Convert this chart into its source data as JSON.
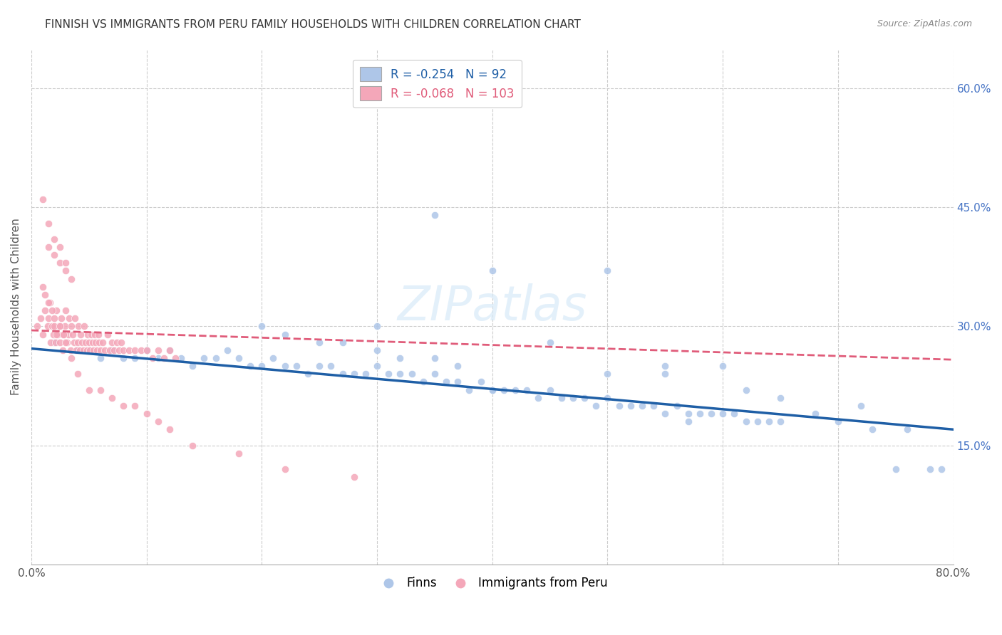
{
  "title": "FINNISH VS IMMIGRANTS FROM PERU FAMILY HOUSEHOLDS WITH CHILDREN CORRELATION CHART",
  "source": "Source: ZipAtlas.com",
  "ylabel": "Family Households with Children",
  "xlim": [
    0.0,
    0.8
  ],
  "ylim": [
    0.0,
    0.65
  ],
  "xticks": [
    0.0,
    0.1,
    0.2,
    0.3,
    0.4,
    0.5,
    0.6,
    0.7,
    0.8
  ],
  "xticklabels": [
    "0.0%",
    "",
    "",
    "",
    "",
    "",
    "",
    "",
    "80.0%"
  ],
  "yticks_right": [
    0.15,
    0.3,
    0.45,
    0.6
  ],
  "ytick_labels_right": [
    "15.0%",
    "30.0%",
    "45.0%",
    "60.0%"
  ],
  "legend_r_blue": "-0.254",
  "legend_n_blue": "92",
  "legend_r_pink": "-0.068",
  "legend_n_pink": "103",
  "blue_color": "#aec6e8",
  "pink_color": "#f4a7b9",
  "trendline_blue_color": "#1f5fa6",
  "trendline_pink_color": "#e05c7a",
  "watermark": "ZIPatlas",
  "trendline_blue_x0": 0.0,
  "trendline_blue_y0": 0.272,
  "trendline_blue_x1": 0.8,
  "trendline_blue_y1": 0.17,
  "trendline_pink_x0": 0.0,
  "trendline_pink_y0": 0.295,
  "trendline_pink_x1": 0.8,
  "trendline_pink_y1": 0.258,
  "finns_x": [
    0.02,
    0.04,
    0.05,
    0.06,
    0.07,
    0.08,
    0.09,
    0.1,
    0.11,
    0.12,
    0.13,
    0.14,
    0.15,
    0.16,
    0.17,
    0.18,
    0.19,
    0.2,
    0.21,
    0.22,
    0.23,
    0.24,
    0.25,
    0.26,
    0.27,
    0.28,
    0.29,
    0.3,
    0.31,
    0.32,
    0.33,
    0.34,
    0.35,
    0.36,
    0.37,
    0.38,
    0.39,
    0.4,
    0.41,
    0.42,
    0.43,
    0.44,
    0.45,
    0.46,
    0.47,
    0.48,
    0.49,
    0.5,
    0.51,
    0.52,
    0.53,
    0.54,
    0.55,
    0.56,
    0.57,
    0.58,
    0.59,
    0.6,
    0.61,
    0.62,
    0.63,
    0.64,
    0.65,
    0.3,
    0.35,
    0.4,
    0.45,
    0.5,
    0.55,
    0.57,
    0.2,
    0.22,
    0.25,
    0.27,
    0.3,
    0.32,
    0.35,
    0.37,
    0.55,
    0.6,
    0.62,
    0.65,
    0.68,
    0.7,
    0.72,
    0.73,
    0.75,
    0.76,
    0.78,
    0.79,
    0.4,
    0.5
  ],
  "finns_y": [
    0.28,
    0.27,
    0.27,
    0.26,
    0.27,
    0.26,
    0.26,
    0.27,
    0.26,
    0.27,
    0.26,
    0.25,
    0.26,
    0.26,
    0.27,
    0.26,
    0.25,
    0.25,
    0.26,
    0.25,
    0.25,
    0.24,
    0.25,
    0.25,
    0.24,
    0.24,
    0.24,
    0.25,
    0.24,
    0.24,
    0.24,
    0.23,
    0.24,
    0.23,
    0.23,
    0.22,
    0.23,
    0.22,
    0.22,
    0.22,
    0.22,
    0.21,
    0.22,
    0.21,
    0.21,
    0.21,
    0.2,
    0.21,
    0.2,
    0.2,
    0.2,
    0.2,
    0.19,
    0.2,
    0.19,
    0.19,
    0.19,
    0.19,
    0.19,
    0.18,
    0.18,
    0.18,
    0.18,
    0.3,
    0.44,
    0.37,
    0.28,
    0.37,
    0.24,
    0.18,
    0.3,
    0.29,
    0.28,
    0.28,
    0.27,
    0.26,
    0.26,
    0.25,
    0.25,
    0.25,
    0.22,
    0.21,
    0.19,
    0.18,
    0.2,
    0.17,
    0.12,
    0.17,
    0.12,
    0.12,
    0.22,
    0.24
  ],
  "peru_x": [
    0.005,
    0.008,
    0.01,
    0.012,
    0.014,
    0.015,
    0.016,
    0.017,
    0.018,
    0.019,
    0.02,
    0.021,
    0.022,
    0.023,
    0.024,
    0.025,
    0.026,
    0.027,
    0.028,
    0.029,
    0.03,
    0.031,
    0.032,
    0.033,
    0.034,
    0.035,
    0.036,
    0.037,
    0.038,
    0.039,
    0.04,
    0.041,
    0.042,
    0.043,
    0.044,
    0.045,
    0.046,
    0.047,
    0.048,
    0.049,
    0.05,
    0.051,
    0.052,
    0.053,
    0.054,
    0.055,
    0.056,
    0.057,
    0.058,
    0.059,
    0.06,
    0.062,
    0.064,
    0.066,
    0.068,
    0.07,
    0.072,
    0.074,
    0.076,
    0.078,
    0.08,
    0.085,
    0.09,
    0.095,
    0.1,
    0.105,
    0.11,
    0.115,
    0.12,
    0.125,
    0.015,
    0.02,
    0.025,
    0.03,
    0.035,
    0.01,
    0.015,
    0.02,
    0.025,
    0.03,
    0.01,
    0.012,
    0.015,
    0.018,
    0.02,
    0.022,
    0.025,
    0.028,
    0.03,
    0.035,
    0.04,
    0.05,
    0.06,
    0.07,
    0.08,
    0.09,
    0.1,
    0.11,
    0.12,
    0.14,
    0.18,
    0.22,
    0.28
  ],
  "peru_y": [
    0.3,
    0.31,
    0.29,
    0.32,
    0.3,
    0.31,
    0.33,
    0.28,
    0.3,
    0.29,
    0.31,
    0.28,
    0.32,
    0.29,
    0.3,
    0.28,
    0.31,
    0.27,
    0.29,
    0.3,
    0.32,
    0.28,
    0.29,
    0.31,
    0.27,
    0.3,
    0.29,
    0.28,
    0.31,
    0.27,
    0.28,
    0.3,
    0.27,
    0.29,
    0.28,
    0.27,
    0.3,
    0.28,
    0.27,
    0.29,
    0.28,
    0.27,
    0.29,
    0.28,
    0.27,
    0.29,
    0.28,
    0.27,
    0.29,
    0.28,
    0.27,
    0.28,
    0.27,
    0.29,
    0.27,
    0.28,
    0.27,
    0.28,
    0.27,
    0.28,
    0.27,
    0.27,
    0.27,
    0.27,
    0.27,
    0.26,
    0.27,
    0.26,
    0.27,
    0.26,
    0.4,
    0.39,
    0.38,
    0.37,
    0.36,
    0.46,
    0.43,
    0.41,
    0.4,
    0.38,
    0.35,
    0.34,
    0.33,
    0.32,
    0.3,
    0.29,
    0.3,
    0.29,
    0.28,
    0.26,
    0.24,
    0.22,
    0.22,
    0.21,
    0.2,
    0.2,
    0.19,
    0.18,
    0.17,
    0.15,
    0.14,
    0.12,
    0.11
  ]
}
